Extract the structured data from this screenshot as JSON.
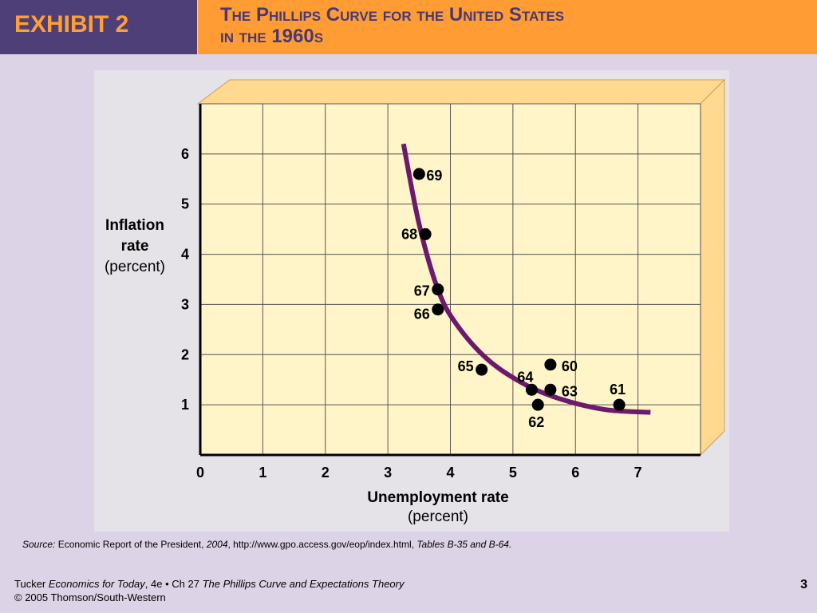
{
  "exhibit": {
    "label": "EXHIBIT 2"
  },
  "title": {
    "line1": "The Phillips Curve for the United States",
    "line2": "in the 1960s"
  },
  "chart_data": {
    "type": "scatter",
    "title": "The Phillips Curve for the United States in the 1960s",
    "xlabel": "Unemployment rate",
    "xlabel_unit": "(percent)",
    "ylabel_line1": "Inflation",
    "ylabel_line2": "rate",
    "ylabel_unit": "(percent)",
    "xlim": [
      0,
      8
    ],
    "ylim": [
      0,
      7
    ],
    "x_ticks": [
      0,
      1,
      2,
      3,
      4,
      5,
      6,
      7
    ],
    "y_ticks": [
      1,
      2,
      3,
      4,
      5,
      6
    ],
    "grid": true,
    "points": [
      {
        "label": "60",
        "x": 5.6,
        "y": 1.8
      },
      {
        "label": "61",
        "x": 6.7,
        "y": 1.0
      },
      {
        "label": "62",
        "x": 5.4,
        "y": 1.0
      },
      {
        "label": "63",
        "x": 5.6,
        "y": 1.3
      },
      {
        "label": "64",
        "x": 5.3,
        "y": 1.3
      },
      {
        "label": "65",
        "x": 4.5,
        "y": 1.7
      },
      {
        "label": "66",
        "x": 3.8,
        "y": 2.9
      },
      {
        "label": "67",
        "x": 3.8,
        "y": 3.3
      },
      {
        "label": "68",
        "x": 3.6,
        "y": 4.4
      },
      {
        "label": "69",
        "x": 3.5,
        "y": 5.6
      }
    ],
    "curve": [
      [
        3.25,
        6.2
      ],
      [
        3.5,
        4.6
      ],
      [
        3.8,
        3.3
      ],
      [
        4.1,
        2.6
      ],
      [
        4.6,
        1.9
      ],
      [
        5.2,
        1.4
      ],
      [
        5.8,
        1.1
      ],
      [
        6.5,
        0.9
      ],
      [
        7.2,
        0.85
      ]
    ],
    "colors": {
      "curve": "#6b1a6e",
      "plot_bg": "#fff5c8",
      "side": "#ffd98f",
      "points": "#000000"
    }
  },
  "source": {
    "prefix": "Source:",
    "report": "Economic Report of the President,",
    "year": "2004",
    "url": ", http://www.gpo.access.gov/eop/index.html,",
    "tables": "Tables B-35 and B-64."
  },
  "footer": {
    "author": "Tucker",
    "book": "Economics for Today",
    "edition": ", 4e • Ch 27",
    "chapter": "The Phillips Curve and Expectations Theory",
    "copyright": "© 2005 Thomson/South-Western",
    "page_number": "3"
  }
}
